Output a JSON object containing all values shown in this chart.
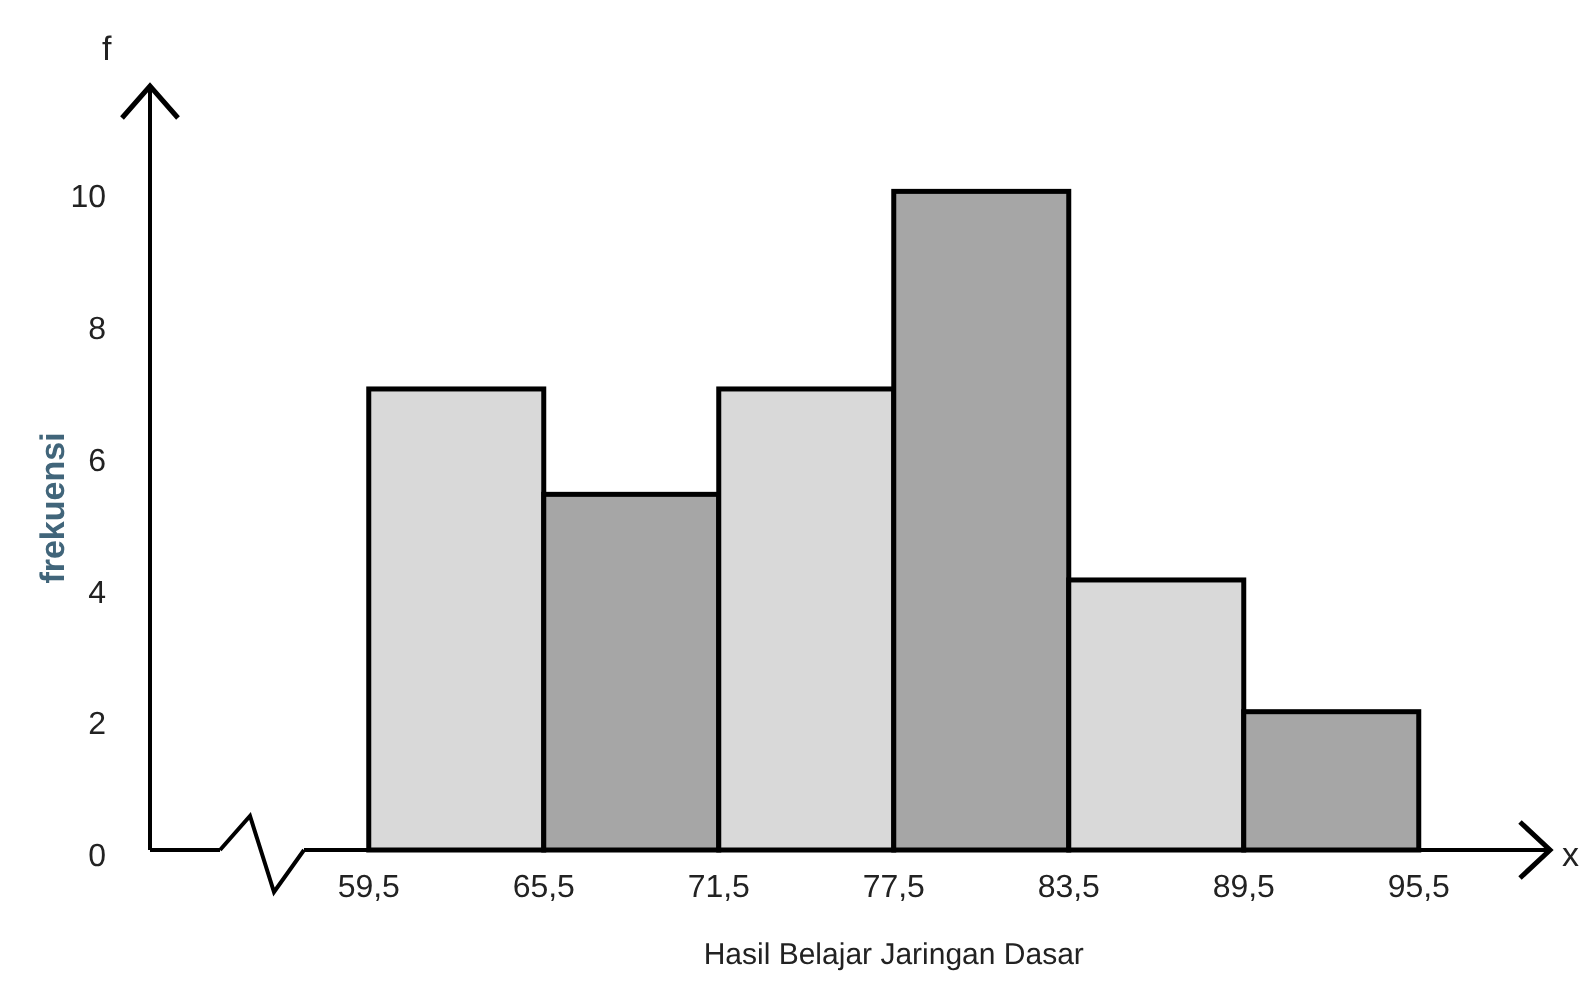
{
  "chart_data": {
    "type": "histogram",
    "xlabel": "Hasil Belajar Jaringan Dasar",
    "ylabel": "frekuensi",
    "bins": [
      59.5,
      65.5,
      71.5,
      77.5,
      83.5,
      89.5,
      95.5
    ],
    "values": [
      7,
      5.4,
      7,
      10,
      4.1,
      2.1
    ],
    "colors": [
      "#d9d9d9",
      "#a6a6a6",
      "#d9d9d9",
      "#a6a6a6",
      "#d9d9d9",
      "#a6a6a6"
    ],
    "xlim": [
      52,
      100
    ],
    "ylim": [
      0,
      11.6
    ],
    "xticks": [
      {
        "value": 59.5,
        "label": "59,5"
      },
      {
        "value": 65.5,
        "label": "65,5"
      },
      {
        "value": 71.5,
        "label": "71,5"
      },
      {
        "value": 77.5,
        "label": "77,5"
      },
      {
        "value": 83.5,
        "label": "83,5"
      },
      {
        "value": 89.5,
        "label": "89,5"
      },
      {
        "value": 95.5,
        "label": "95,5"
      }
    ],
    "yticks": [
      0,
      2,
      4,
      6,
      8,
      10
    ],
    "annotations": [
      "f",
      "x"
    ]
  }
}
